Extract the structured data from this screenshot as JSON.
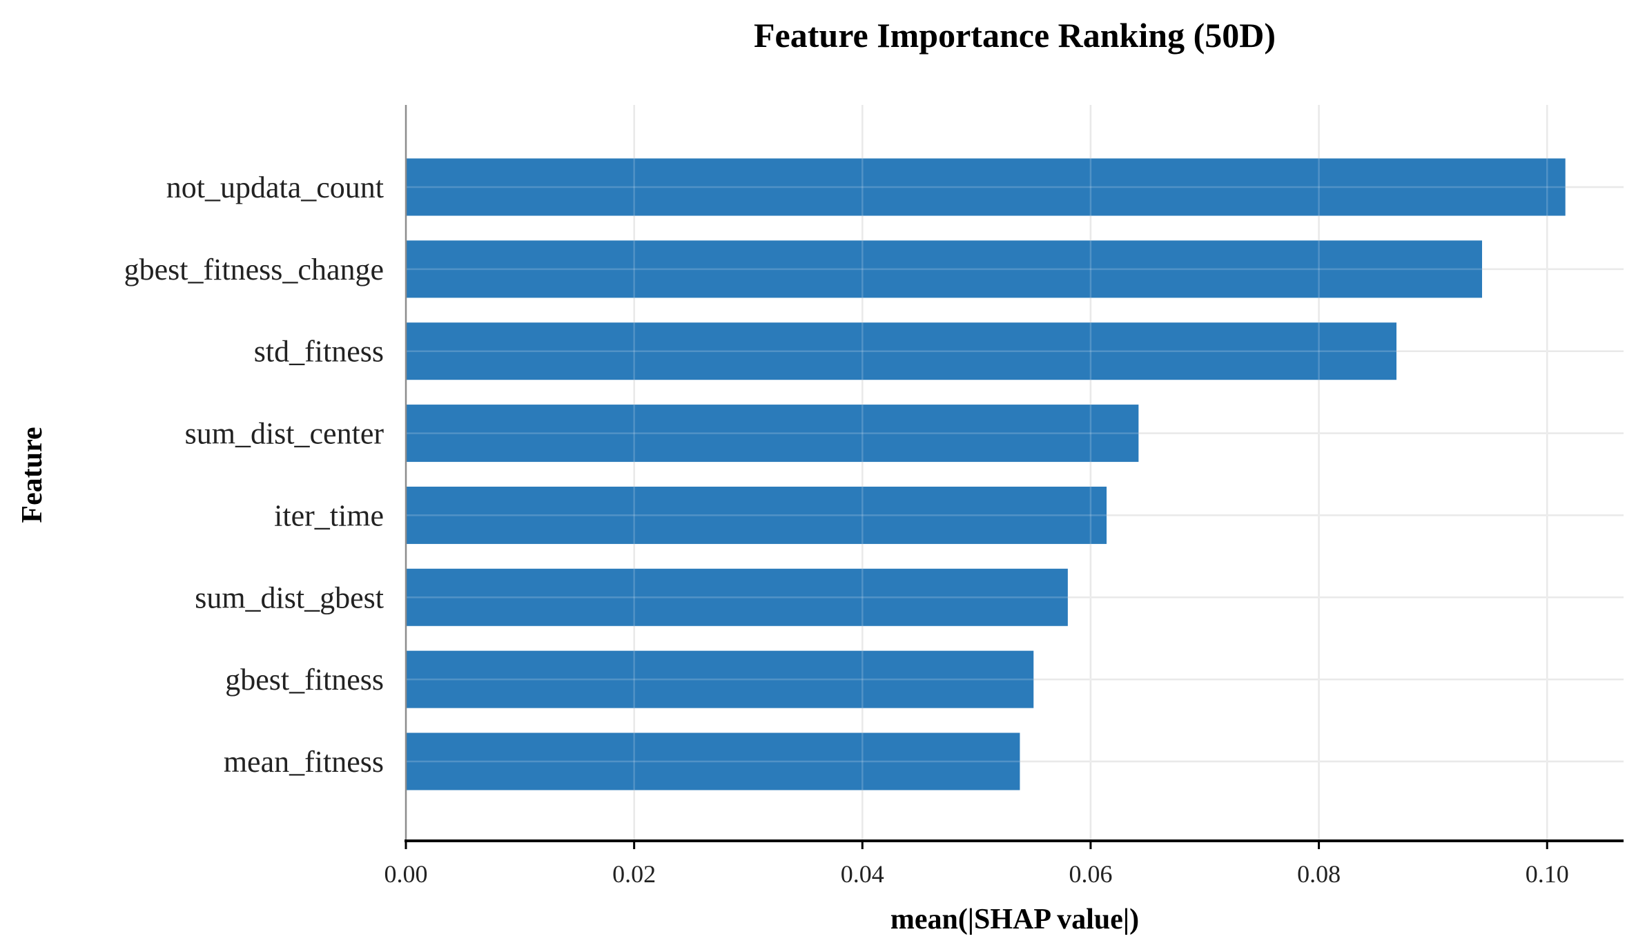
{
  "chart_data": {
    "type": "bar",
    "orientation": "horizontal",
    "title": "Feature Importance Ranking (50D)",
    "xlabel": "mean(|SHAP value|)",
    "ylabel": "Feature",
    "categories": [
      "not_updata_count",
      "gbest_fitness_change",
      "std_fitness",
      "sum_dist_center",
      "iter_time",
      "sum_dist_gbest",
      "gbest_fitness",
      "mean_fitness"
    ],
    "values": [
      0.1016,
      0.0943,
      0.0868,
      0.0642,
      0.0614,
      0.058,
      0.055,
      0.0538
    ],
    "xlim": [
      0.0,
      0.1067
    ],
    "xticks": [
      0.0,
      0.02,
      0.04,
      0.06,
      0.08,
      0.1
    ],
    "xtick_labels": [
      "0.00",
      "0.02",
      "0.04",
      "0.06",
      "0.08",
      "0.10"
    ],
    "grid": true,
    "bar_color": "#2b7bba",
    "grid_color": "#e4e4e4",
    "axis_color": "#000000"
  }
}
